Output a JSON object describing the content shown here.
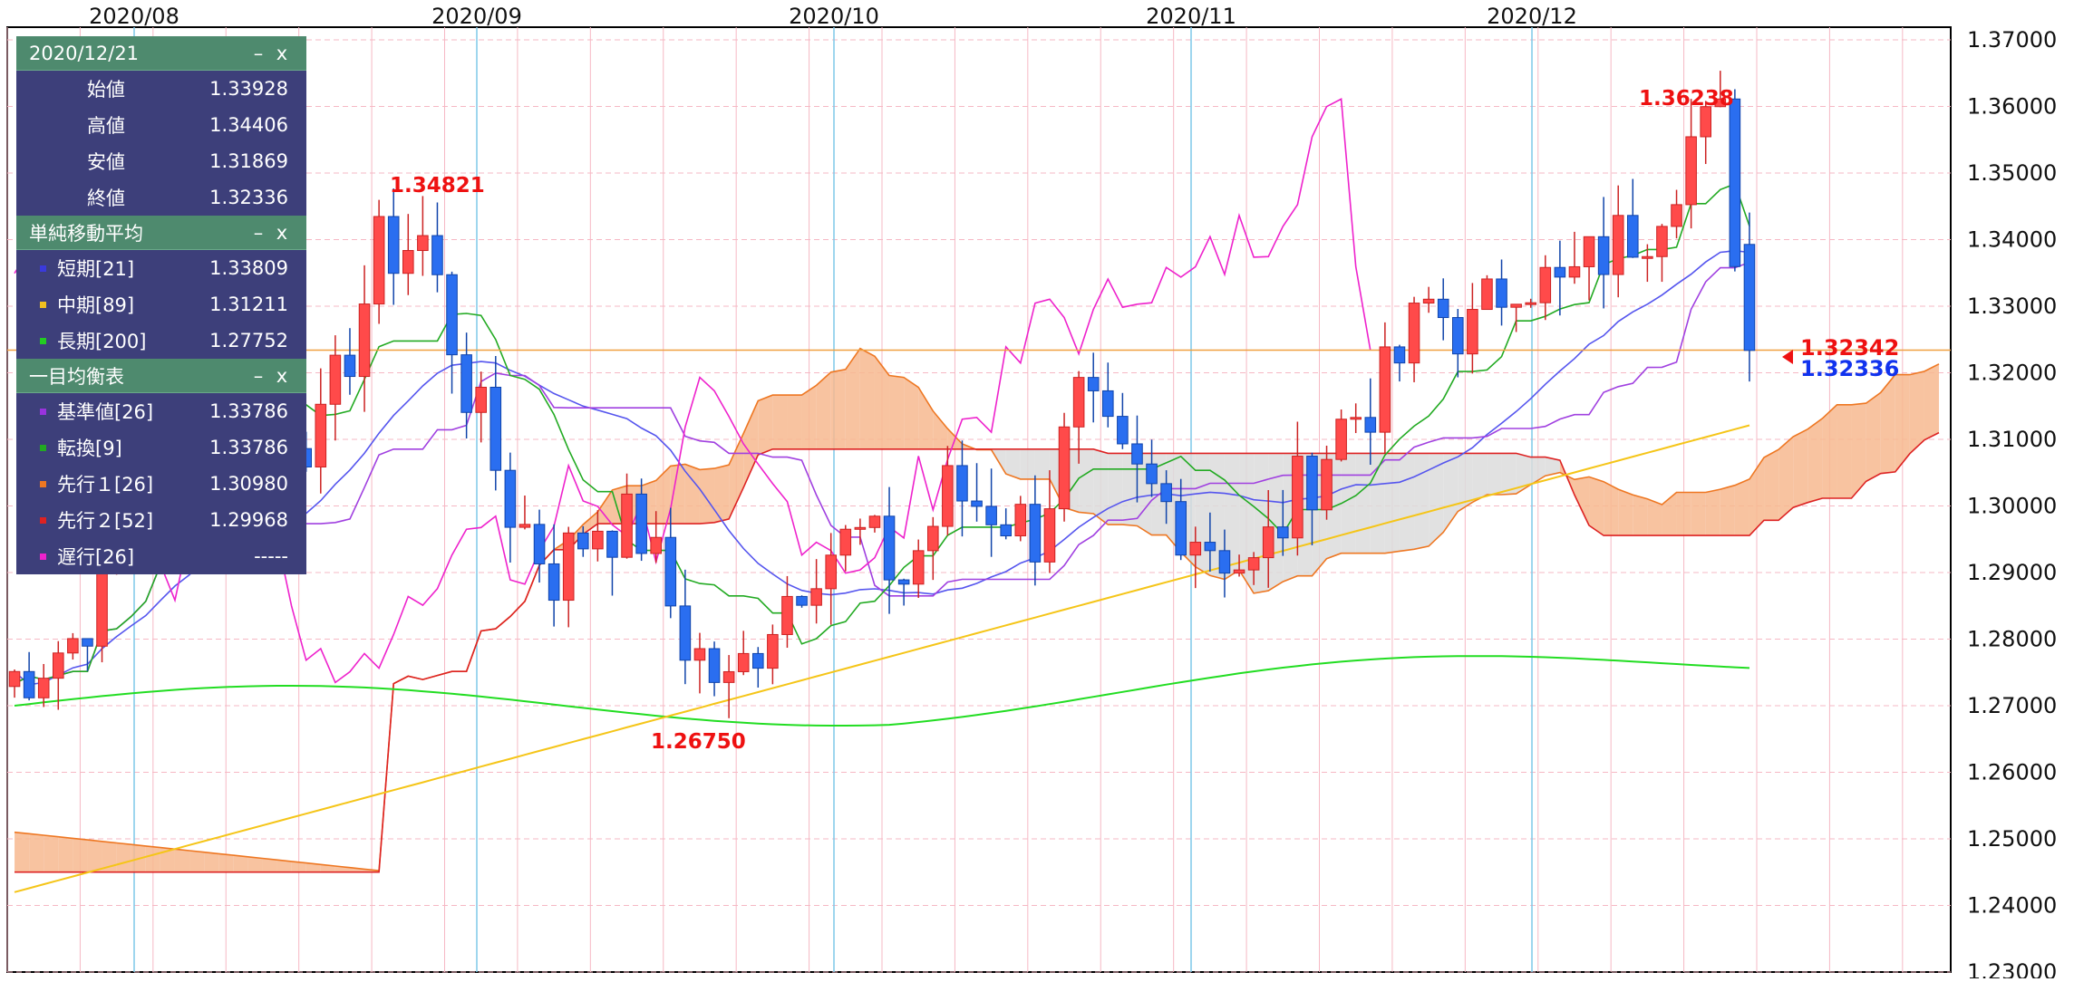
{
  "panel": {
    "date": "2020/12/21",
    "minimize_label": "–",
    "close_label": "x",
    "ohlc": [
      {
        "label": "始値",
        "value": "1.33928"
      },
      {
        "label": "高値",
        "value": "1.34406"
      },
      {
        "label": "安値",
        "value": "1.31869"
      },
      {
        "label": "終値",
        "value": "1.32336"
      }
    ],
    "sma_title": "単純移動平均",
    "sma": [
      {
        "label": "短期[21]",
        "value": "1.33809",
        "color": "#3a3adc"
      },
      {
        "label": "中期[89]",
        "value": "1.31211",
        "color": "#f0c020"
      },
      {
        "label": "長期[200]",
        "value": "1.27752",
        "color": "#22cc22"
      }
    ],
    "ichimoku_title": "一目均衡表",
    "ichimoku": [
      {
        "label": "基準値[26]",
        "value": "1.33786",
        "color": "#9933dd"
      },
      {
        "label": "転換[9]",
        "value": "1.33786",
        "color": "#22aa22"
      },
      {
        "label": "先行１[26]",
        "value": "1.30980",
        "color": "#ee7722"
      },
      {
        "label": "先行２[52]",
        "value": "1.29968",
        "color": "#dd2222"
      },
      {
        "label": "遅行[26]",
        "value": "-----",
        "color": "#ee22cc"
      }
    ]
  },
  "chart_data": {
    "type": "candlestick",
    "x_labels": [
      "2020/08",
      "2020/09",
      "2020/10",
      "2020/11",
      "2020/12"
    ],
    "y_ticks": [
      "1.23000",
      "1.24000",
      "1.25000",
      "1.26000",
      "1.27000",
      "1.28000",
      "1.29000",
      "1.30000",
      "1.31000",
      "1.32000",
      "1.33000",
      "1.34000",
      "1.35000",
      "1.36000",
      "1.37000"
    ],
    "ylim": [
      1.23,
      1.375
    ],
    "annotations": [
      {
        "text": "1.34821",
        "value": 1.34821,
        "index": 26,
        "color": "#ee1111"
      },
      {
        "text": "1.26750",
        "value": 1.2675,
        "index": 47,
        "color": "#ee1111"
      },
      {
        "text": "1.36238",
        "value": 1.36238,
        "index": 114,
        "color": "#ee1111"
      }
    ],
    "price_tags": [
      {
        "text": "1.32342",
        "value": 1.32342,
        "color": "#ee1111"
      },
      {
        "text": "1.32336",
        "value": 1.32336,
        "color": "#1133ee"
      }
    ],
    "current_price": 1.3234,
    "colors": {
      "up": "#ff4a4a",
      "down": "#2a6ef0",
      "cloud_up": "#f7b88f",
      "cloud_down": "#dcdcdc",
      "kijun": "#a040e0",
      "tenkan": "#22aa22",
      "senkou_a": "#ee7722",
      "senkou_b": "#dd2222",
      "chikou": "#ee22cc",
      "sma_short": "#5555ee",
      "sma_mid": "#f5c518",
      "sma_long": "#22dd22",
      "price_line": "#f0a040"
    }
  }
}
